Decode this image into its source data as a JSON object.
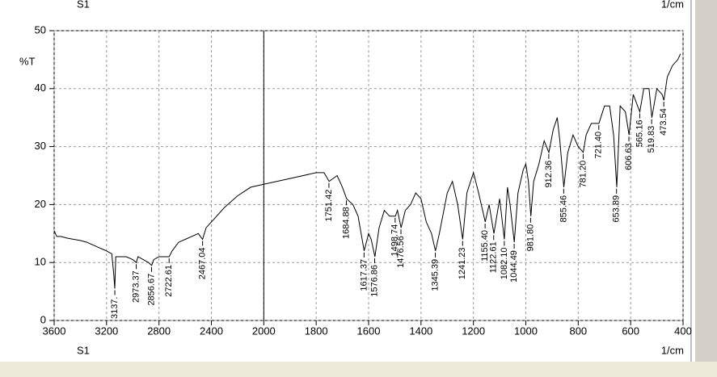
{
  "chart_data": {
    "type": "line",
    "header": {
      "left": "S1",
      "right": "1/cm"
    },
    "footer": {
      "left": "S1",
      "right": "1/cm"
    },
    "y_label": "%T",
    "xlim": [
      3600,
      400
    ],
    "xticks": [
      3600,
      3200,
      2800,
      2400,
      2000,
      1800,
      1600,
      1400,
      1200,
      1000,
      800,
      600,
      400
    ],
    "ylim": [
      0,
      50
    ],
    "yticks": [
      0,
      10,
      20,
      30,
      40,
      50
    ],
    "grid": true,
    "cursor_x": 2000,
    "x": [
      3600,
      3580,
      3550,
      3500,
      3450,
      3400,
      3350,
      3300,
      3250,
      3200,
      3160,
      3145,
      3137,
      3130,
      3100,
      3050,
      3000,
      2973,
      2960,
      2920,
      2880,
      2856,
      2840,
      2800,
      2760,
      2722,
      2700,
      2650,
      2600,
      2550,
      2500,
      2467,
      2440,
      2400,
      2300,
      2200,
      2100,
      2000,
      1900,
      1800,
      1770,
      1751,
      1720,
      1700,
      1684,
      1660,
      1640,
      1617,
      1600,
      1590,
      1576,
      1560,
      1540,
      1520,
      1498,
      1490,
      1476,
      1460,
      1440,
      1420,
      1400,
      1380,
      1360,
      1345,
      1330,
      1300,
      1280,
      1260,
      1241,
      1225,
      1200,
      1180,
      1155,
      1140,
      1122,
      1100,
      1082,
      1070,
      1060,
      1044,
      1030,
      1010,
      1000,
      990,
      981,
      970,
      950,
      930,
      912,
      895,
      880,
      870,
      855,
      840,
      820,
      800,
      781,
      770,
      750,
      721,
      700,
      680,
      665,
      653,
      640,
      620,
      606,
      590,
      565,
      550,
      530,
      519,
      500,
      480,
      473,
      460,
      440,
      420,
      410
    ],
    "series": [
      {
        "color": "#000000",
        "values": [
          15.5,
          14.5,
          14.5,
          14.2,
          14,
          13.8,
          13.5,
          13,
          12.5,
          12,
          11.5,
          8,
          5.5,
          11,
          11,
          11,
          10.5,
          10,
          11,
          10.5,
          10,
          9.5,
          10.5,
          11,
          11,
          11,
          12,
          13.5,
          14,
          14.5,
          15,
          14,
          16,
          17,
          19.5,
          21.5,
          23,
          23.5,
          24.5,
          25.5,
          25.5,
          24,
          25,
          23,
          21,
          20,
          18,
          12,
          15,
          14,
          11,
          16,
          19,
          18,
          18,
          19,
          16,
          19,
          20,
          22,
          21,
          17,
          15,
          12,
          15,
          22,
          24,
          20,
          14,
          22,
          25.5,
          22,
          17,
          20,
          15,
          21,
          14,
          23,
          20,
          13.5,
          22,
          26,
          27,
          24,
          18,
          24,
          27,
          31,
          29,
          33,
          35,
          31,
          23,
          29,
          32,
          30,
          29,
          32,
          34,
          34,
          37,
          37,
          32,
          23,
          37,
          36,
          32,
          39,
          36,
          40,
          40,
          35,
          40,
          39,
          38,
          42,
          44,
          45,
          46
        ]
      }
    ],
    "peaks": {
      "x": [
        3137,
        2973.37,
        2856.67,
        2722.61,
        2467.04,
        1751.42,
        1684.88,
        1617.37,
        1576.86,
        1498.74,
        1476.56,
        1345.39,
        1241.23,
        1155.4,
        1122.61,
        1082.1,
        1044.49,
        981.8,
        912.36,
        855.46,
        781.2,
        721.4,
        653.89,
        606.63,
        565.16,
        519.83,
        473.54
      ],
      "values": [
        5.5,
        10,
        9.5,
        11,
        14,
        24,
        21,
        12,
        11,
        18,
        16,
        12,
        14,
        17,
        15,
        14,
        13.5,
        18,
        29,
        23,
        29,
        34,
        23,
        32,
        36,
        35,
        38
      ],
      "value_labels": [
        "3137.",
        "2973.37",
        "2856.67",
        "2722.61",
        "2467.04",
        "1751.42",
        "1684.88",
        "1617.37",
        "1576.86",
        "1498.74",
        "1476.56",
        "1345.39",
        "1241.23",
        "1155.40",
        "1122.61",
        "1082.10",
        "1044.49",
        "981.80",
        "912.36",
        "855.46",
        "781.20",
        "721.40",
        "653.89",
        "606.63",
        "565.16",
        "519.83",
        "473.54"
      ]
    }
  }
}
